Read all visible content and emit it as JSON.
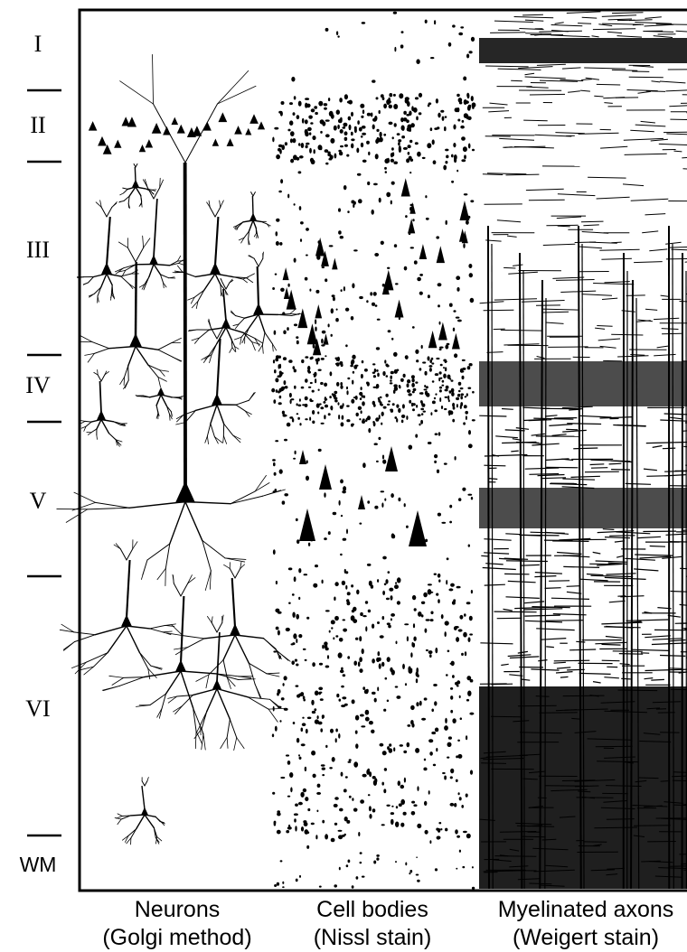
{
  "layers": [
    {
      "label": "I"
    },
    {
      "label": "II"
    },
    {
      "label": "III"
    },
    {
      "label": "IV"
    },
    {
      "label": "V"
    },
    {
      "label": "VI"
    },
    {
      "label": "WM"
    }
  ],
  "columns": [
    {
      "line1": "Neurons",
      "line2": "(Golgi method)"
    },
    {
      "line1": "Cell bodies",
      "line2": "(Nissl stain)"
    },
    {
      "line1": "Myelinated axons",
      "line2": "(Weigert stain)"
    }
  ],
  "colors": {
    "ink": "#000000",
    "paper": "#ffffff"
  }
}
